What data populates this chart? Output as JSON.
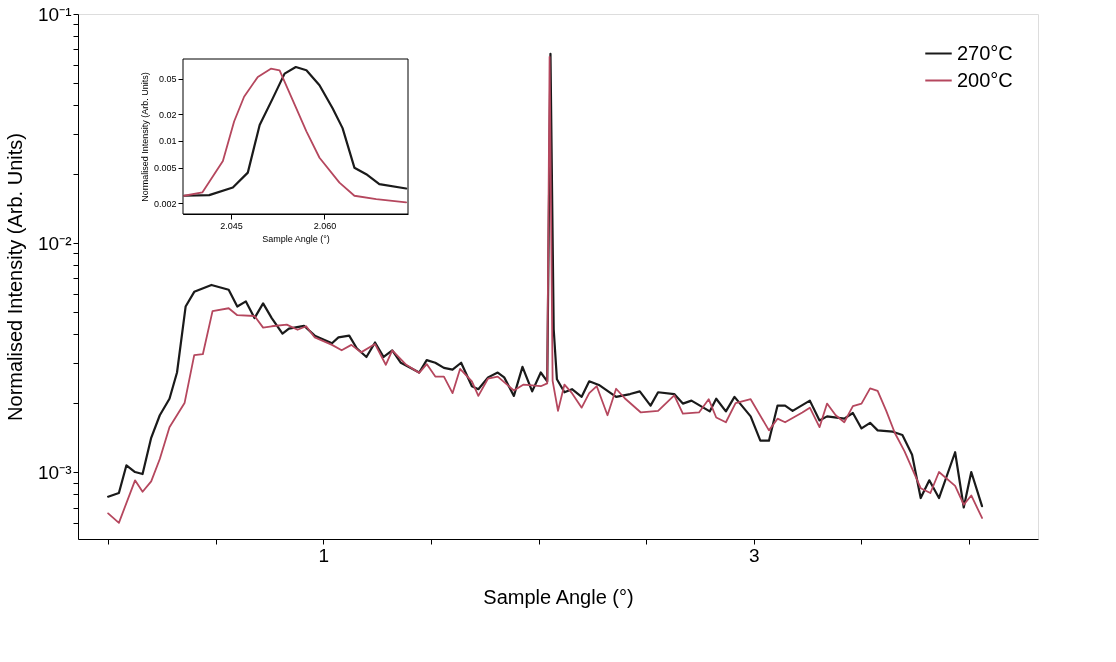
{
  "chart_data": [
    {
      "type": "line",
      "xlabel": "Sample Angle (°)",
      "ylabel": "Normalised Intensity (Arb. Units)",
      "log": "y",
      "legend": "top right",
      "xlim": [
        -0.14,
        4.32
      ],
      "ylim": [
        0.00051,
        0.1
      ],
      "xticks": [
        {
          "value": 0,
          "label": null
        },
        {
          "value": 0.5,
          "label": null
        },
        1,
        {
          "value": 1.5,
          "label": null
        },
        {
          "value": 2,
          "label": null
        },
        {
          "value": 2.5,
          "label": null
        },
        3,
        {
          "value": 3.5,
          "label": null
        },
        {
          "value": 4,
          "label": null
        }
      ],
      "yticks": [
        {
          "value": 0.0006,
          "label": null
        },
        {
          "value": 0.0007,
          "label": null
        },
        {
          "value": 0.0008,
          "label": null
        },
        {
          "value": 0.0009,
          "label": null
        },
        {
          "value": 0.001,
          "label": "10⁻³"
        },
        {
          "value": 0.002,
          "label": null
        },
        {
          "value": 0.003,
          "label": null
        },
        {
          "value": 0.004,
          "label": null
        },
        {
          "value": 0.005,
          "label": null
        },
        {
          "value": 0.006,
          "label": null
        },
        {
          "value": 0.007,
          "label": null
        },
        {
          "value": 0.008,
          "label": null
        },
        {
          "value": 0.009,
          "label": null
        },
        {
          "value": 0.01,
          "label": "10⁻²"
        },
        {
          "value": 0.02,
          "label": null
        },
        {
          "value": 0.03,
          "label": null
        },
        {
          "value": 0.04,
          "label": null
        },
        {
          "value": 0.05,
          "label": null
        },
        {
          "value": 0.06,
          "label": null
        },
        {
          "value": 0.07,
          "label": null
        },
        {
          "value": 0.08,
          "label": null
        },
        {
          "value": 0.09,
          "label": null
        },
        {
          "value": 0.1,
          "label": "10⁻¹"
        }
      ],
      "series": [
        {
          "name": "270°C",
          "color": "#1a1a1a",
          "x": [
            0,
            0.05,
            0.085,
            0.125,
            0.16,
            0.2,
            0.24,
            0.285,
            0.32,
            0.36,
            0.4,
            0.48,
            0.56,
            0.6,
            0.64,
            0.68,
            0.72,
            0.76,
            0.81,
            0.84,
            0.91,
            0.96,
            1.04,
            1.07,
            1.12,
            1.155,
            1.2,
            1.24,
            1.28,
            1.32,
            1.36,
            1.445,
            1.48,
            1.52,
            1.56,
            1.6,
            1.64,
            1.69,
            1.72,
            1.765,
            1.81,
            1.84,
            1.885,
            1.925,
            1.97,
            2.01,
            2.04,
            2.055,
            2.07,
            2.085,
            2.12,
            2.155,
            2.2,
            2.235,
            2.28,
            2.36,
            2.425,
            2.47,
            2.52,
            2.555,
            2.63,
            2.67,
            2.71,
            2.795,
            2.825,
            2.87,
            2.91,
            2.985,
            3.03,
            3.07,
            3.11,
            3.145,
            3.18,
            3.26,
            3.305,
            3.34,
            3.42,
            3.46,
            3.5,
            3.54,
            3.575,
            3.645,
            3.69,
            3.735,
            3.775,
            3.815,
            3.86,
            3.935,
            3.975,
            4.01,
            4.06
          ],
          "values": [
            0.00078,
            0.00081,
            0.00107,
            0.001,
            0.00098,
            0.00141,
            0.00177,
            0.00209,
            0.00272,
            0.00528,
            0.00612,
            0.00656,
            0.00625,
            0.00528,
            0.00556,
            0.0047,
            0.00545,
            0.0047,
            0.00402,
            0.00423,
            0.00435,
            0.00394,
            0.00365,
            0.00387,
            0.00394,
            0.00347,
            0.00318,
            0.00368,
            0.00318,
            0.0034,
            0.003,
            0.00272,
            0.00308,
            0.003,
            0.00285,
            0.0028,
            0.003,
            0.00237,
            0.0023,
            0.00259,
            0.00272,
            0.00259,
            0.00215,
            0.00288,
            0.00225,
            0.00272,
            0.00249,
            0.067,
            0.0042,
            0.00254,
            0.00223,
            0.0023,
            0.00213,
            0.00249,
            0.0024,
            0.00213,
            0.00219,
            0.00225,
            0.00195,
            0.00223,
            0.00219,
            0.00199,
            0.00205,
            0.00184,
            0.00209,
            0.00184,
            0.00213,
            0.00175,
            0.00137,
            0.00137,
            0.00195,
            0.00195,
            0.00185,
            0.00205,
            0.00168,
            0.00175,
            0.00171,
            0.00181,
            0.00155,
            0.00164,
            0.00152,
            0.0015,
            0.00145,
            0.00119,
            0.00077,
            0.00092,
            0.00077,
            0.00122,
            0.0007,
            0.001,
            0.00071
          ]
        },
        {
          "name": "200°C",
          "color": "#b5475e",
          "x": [
            0,
            0.05,
            0.125,
            0.16,
            0.2,
            0.24,
            0.285,
            0.355,
            0.4,
            0.44,
            0.485,
            0.56,
            0.6,
            0.68,
            0.72,
            0.76,
            0.83,
            0.88,
            0.92,
            0.96,
            1.04,
            1.085,
            1.13,
            1.175,
            1.24,
            1.29,
            1.32,
            1.385,
            1.445,
            1.48,
            1.52,
            1.56,
            1.6,
            1.635,
            1.69,
            1.72,
            1.765,
            1.81,
            1.885,
            1.93,
            2.01,
            2.04,
            2.051,
            2.065,
            2.09,
            2.12,
            2.155,
            2.2,
            2.235,
            2.27,
            2.32,
            2.36,
            2.4,
            2.475,
            2.555,
            2.63,
            2.67,
            2.745,
            2.79,
            2.825,
            2.87,
            2.915,
            2.985,
            3.07,
            3.11,
            3.145,
            3.225,
            3.26,
            3.305,
            3.34,
            3.38,
            3.42,
            3.46,
            3.5,
            3.54,
            3.575,
            3.615,
            3.655,
            3.7,
            3.775,
            3.82,
            3.86,
            3.935,
            3.975,
            4.01,
            4.06
          ],
          "values": [
            0.00066,
            0.0006,
            0.00092,
            0.00082,
            0.00091,
            0.00114,
            0.00157,
            0.002,
            0.00324,
            0.00327,
            0.00504,
            0.00519,
            0.00484,
            0.0048,
            0.00427,
            0.00433,
            0.0044,
            0.00418,
            0.00433,
            0.00387,
            0.00359,
            0.0034,
            0.00359,
            0.00333,
            0.00362,
            0.00294,
            0.0034,
            0.00294,
            0.00271,
            0.00296,
            0.00261,
            0.00261,
            0.00221,
            0.00282,
            0.00249,
            0.00215,
            0.00256,
            0.00261,
            0.00227,
            0.00241,
            0.00237,
            0.00244,
            0.065,
            0.0025,
            0.00185,
            0.00241,
            0.00221,
            0.00191,
            0.00221,
            0.00237,
            0.00177,
            0.00231,
            0.0021,
            0.00182,
            0.00185,
            0.00216,
            0.0018,
            0.00182,
            0.00208,
            0.00173,
            0.00165,
            0.002,
            0.00208,
            0.00152,
            0.00171,
            0.00165,
            0.00182,
            0.00191,
            0.00157,
            0.00199,
            0.00177,
            0.00165,
            0.00194,
            0.00199,
            0.00232,
            0.00226,
            0.00185,
            0.00148,
            0.00123,
            0.00085,
            0.00081,
            0.001,
            0.00087,
            0.00072,
            0.00079,
            0.00063
          ]
        }
      ]
    },
    {
      "type": "line",
      "xlabel": "Sample Angle (°)",
      "ylabel": "Normalised Intensity (Arb. Units)",
      "log": "y",
      "xlim": [
        2.0373,
        2.0734
      ],
      "ylim": [
        0.00151,
        0.083
      ],
      "xticks": [
        2.045,
        {
          "value": 2.06,
          "label": "2.060"
        }
      ],
      "yticks": [
        0.002,
        0.005,
        0.01,
        0.02,
        0.05
      ],
      "series": [
        {
          "color": "#1a1a1a",
          "x": [
            2.0375,
            2.0415,
            2.0453,
            2.0477,
            2.0496,
            2.0517,
            2.0536,
            2.0554,
            2.0571,
            2.0592,
            2.0613,
            2.0629,
            2.0648,
            2.0667,
            2.0688,
            2.0731
          ],
          "values": [
            0.00242,
            0.00246,
            0.003,
            0.0044,
            0.0151,
            0.03,
            0.0569,
            0.0674,
            0.062,
            0.0422,
            0.0232,
            0.0139,
            0.005,
            0.00422,
            0.00327,
            0.00292
          ]
        },
        {
          "color": "#b5475e",
          "x": [
            2.0375,
            2.0404,
            2.0437,
            2.0455,
            2.0471,
            2.0493,
            2.0514,
            2.0528,
            2.0549,
            2.0571,
            2.0592,
            2.0624,
            2.0648,
            2.0683,
            2.0731
          ],
          "values": [
            0.00242,
            0.00264,
            0.00593,
            0.0165,
            0.0313,
            0.0522,
            0.0646,
            0.062,
            0.0287,
            0.0128,
            0.00646,
            0.0034,
            0.00242,
            0.00222,
            0.00204
          ]
        }
      ]
    }
  ]
}
